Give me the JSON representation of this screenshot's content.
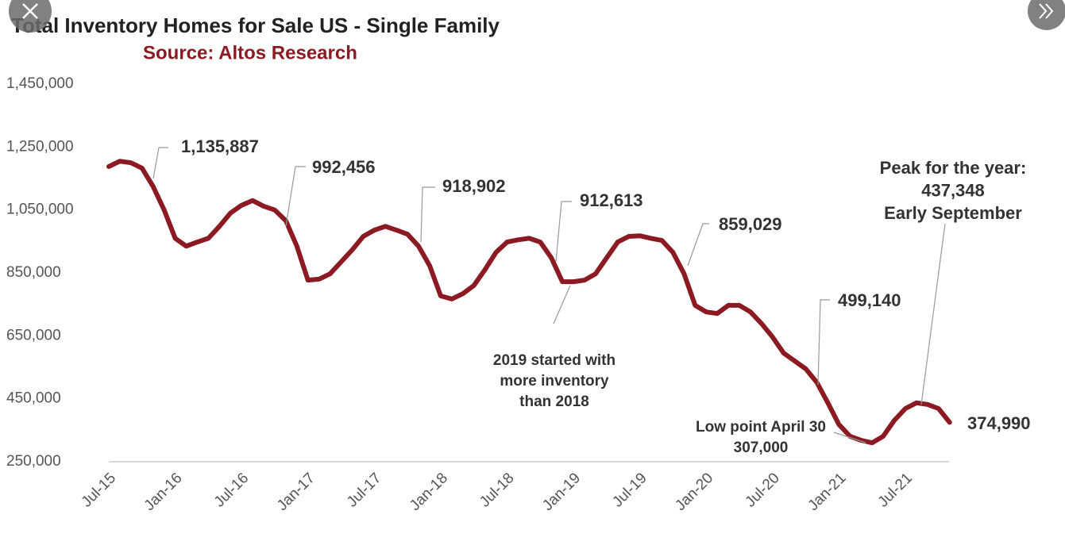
{
  "chart_data": {
    "type": "line",
    "title": "Total Inventory Homes for Sale US - Single Family",
    "subtitle": "Source: Altos Research",
    "color": "#8b1a23",
    "x": [
      "2015-07",
      "2015-08",
      "2015-09",
      "2015-10",
      "2015-11",
      "2015-12",
      "2016-01",
      "2016-02",
      "2016-03",
      "2016-04",
      "2016-05",
      "2016-06",
      "2016-07",
      "2016-08",
      "2016-09",
      "2016-10",
      "2016-11",
      "2016-12",
      "2017-01",
      "2017-02",
      "2017-03",
      "2017-04",
      "2017-05",
      "2017-06",
      "2017-07",
      "2017-08",
      "2017-09",
      "2017-10",
      "2017-11",
      "2017-12",
      "2018-01",
      "2018-02",
      "2018-03",
      "2018-04",
      "2018-05",
      "2018-06",
      "2018-07",
      "2018-08",
      "2018-09",
      "2018-10",
      "2018-11",
      "2018-12",
      "2019-01",
      "2019-02",
      "2019-03",
      "2019-04",
      "2019-05",
      "2019-06",
      "2019-07",
      "2019-08",
      "2019-09",
      "2019-10",
      "2019-11",
      "2019-12",
      "2020-01",
      "2020-02",
      "2020-03",
      "2020-04",
      "2020-05",
      "2020-06",
      "2020-07",
      "2020-08",
      "2020-09",
      "2020-10",
      "2020-11",
      "2020-12",
      "2021-01",
      "2021-02",
      "2021-03",
      "2021-04",
      "2021-05",
      "2021-06",
      "2021-07",
      "2021-08",
      "2021-09",
      "2021-10",
      "2021-11"
    ],
    "values": [
      1188000,
      1205000,
      1200000,
      1183000,
      1125000,
      1050000,
      960000,
      935000,
      948000,
      960000,
      998000,
      1040000,
      1065000,
      1080000,
      1062000,
      1050000,
      1016000,
      935000,
      827000,
      830000,
      847000,
      885000,
      923000,
      966000,
      986000,
      998000,
      986000,
      973000,
      935000,
      873000,
      777000,
      767000,
      784000,
      810000,
      860000,
      915000,
      948000,
      955000,
      960000,
      948000,
      898000,
      822000,
      822000,
      827000,
      847000,
      898000,
      948000,
      966000,
      968000,
      960000,
      953000,
      915000,
      847000,
      747000,
      726000,
      721000,
      747000,
      747000,
      726000,
      689000,
      646000,
      595000,
      570000,
      545000,
      502000,
      437000,
      368000,
      331000,
      318000,
      310000,
      331000,
      381000,
      419000,
      437000,
      432000,
      419000,
      374990
    ],
    "xticks": [
      {
        "value": "2015-07",
        "label": "Jul-15"
      },
      {
        "value": "2016-01",
        "label": "Jan-16"
      },
      {
        "value": "2016-07",
        "label": "Jul-16"
      },
      {
        "value": "2017-01",
        "label": "Jan-17"
      },
      {
        "value": "2017-07",
        "label": "Jul-17"
      },
      {
        "value": "2018-01",
        "label": "Jan-18"
      },
      {
        "value": "2018-07",
        "label": "Jul-18"
      },
      {
        "value": "2019-01",
        "label": "Jan-19"
      },
      {
        "value": "2019-07",
        "label": "Jul-19"
      },
      {
        "value": "2020-01",
        "label": "Jan-20"
      },
      {
        "value": "2020-07",
        "label": "Jul-20"
      },
      {
        "value": "2021-01",
        "label": "Jan-21"
      },
      {
        "value": "2021-07",
        "label": "Jul-21"
      }
    ],
    "ylim": [
      250000,
      1450000
    ],
    "yticks": [
      {
        "value": 250000,
        "label": "250,000"
      },
      {
        "value": 450000,
        "label": "450,000"
      },
      {
        "value": 650000,
        "label": "650,000"
      },
      {
        "value": 850000,
        "label": "850,000"
      },
      {
        "value": 1050000,
        "label": "1,050,000"
      },
      {
        "value": 1250000,
        "label": "1,250,000"
      },
      {
        "value": 1450000,
        "label": "1,450,000"
      }
    ],
    "grid": false,
    "annotations": [
      {
        "lines": [
          "1,135,887"
        ]
      },
      {
        "lines": [
          "992,456"
        ]
      },
      {
        "lines": [
          "918,902"
        ]
      },
      {
        "lines": [
          "912,613"
        ]
      },
      {
        "lines": [
          "859,029"
        ]
      },
      {
        "lines": [
          "499,140"
        ]
      },
      {
        "lines": [
          "Peak for the year:",
          "437,348",
          "Early September"
        ]
      },
      {
        "lines": [
          "2019 started with",
          "more inventory",
          "than 2018"
        ]
      },
      {
        "lines": [
          "Low point April 30",
          "307,000"
        ]
      },
      {
        "lines": [
          "374,990"
        ]
      }
    ]
  }
}
